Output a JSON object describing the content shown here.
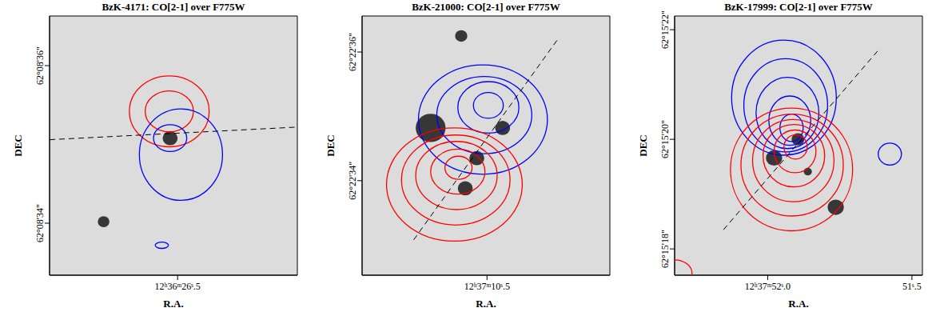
{
  "chart_data": [
    {
      "type": "contour",
      "title": "BzK-4171: CO[2-1] over F775W",
      "x_label": "R.A.",
      "y_label": "DEC",
      "xlim": [
        0,
        2.98
      ],
      "ylim": [
        33.34,
        36.63
      ],
      "xticks": [
        {
          "value": 1.54,
          "label": "12ʰ36ᵐ26ˢ.5"
        }
      ],
      "yticks": [
        {
          "value": 34,
          "label": "62°08'34\""
        },
        {
          "value": 36,
          "label": "62°08'36\""
        }
      ],
      "contours": [
        {
          "color": "#ff0000",
          "line_style": "solid",
          "ellipses": [
            {
              "x": 1.44,
              "y": 35.42,
              "rx": 0.48,
              "ry": 0.45
            },
            {
              "x": 1.44,
              "y": 35.42,
              "rx": 0.29,
              "ry": 0.26
            }
          ]
        },
        {
          "color": "#0000ff",
          "line_style": "solid",
          "ellipses": [
            {
              "x": 1.58,
              "y": 34.87,
              "rx": 0.5,
              "ry": 0.58
            },
            {
              "x": 1.45,
              "y": 35.08,
              "rx": 0.2,
              "ry": 0.17
            },
            {
              "x": 1.35,
              "y": 33.72,
              "rx": 0.08,
              "ry": 0.04
            }
          ]
        }
      ],
      "line": {
        "line_style": "dashed",
        "color": "#000000",
        "x": [
          0,
          2.98
        ],
        "y": [
          35.06,
          35.22
        ]
      },
      "sources": [
        {
          "x": 1.45,
          "y": 35.08,
          "r": 0.09
        },
        {
          "x": 0.65,
          "y": 34.02,
          "r": 0.07
        }
      ]
    },
    {
      "type": "contour",
      "title": "BzK-21000: CO[2-1] over F775W",
      "x_label": "R.A.",
      "y_label": "DEC",
      "xlim": [
        0,
        3.65
      ],
      "ylim": [
        32.53,
        36.56
      ],
      "xticks": [
        {
          "value": 1.84,
          "label": "12ʰ37ᵐ10ˢ.5"
        }
      ],
      "yticks": [
        {
          "value": 34,
          "label": "62°22'34\""
        },
        {
          "value": 36,
          "label": "62°22'36\""
        }
      ],
      "contours": [
        {
          "color": "#0000ff",
          "line_style": "solid",
          "ellipses": [
            {
              "x": 1.78,
              "y": 34.95,
              "rx": 0.95,
              "ry": 0.85
            },
            {
              "x": 1.8,
              "y": 35.02,
              "rx": 0.7,
              "ry": 0.6
            },
            {
              "x": 1.86,
              "y": 35.14,
              "rx": 0.45,
              "ry": 0.4
            },
            {
              "x": 1.86,
              "y": 35.17,
              "rx": 0.22,
              "ry": 0.2
            }
          ]
        },
        {
          "color": "#ff0000",
          "line_style": "solid",
          "ellipses": [
            {
              "x": 1.36,
              "y": 33.94,
              "rx": 1.0,
              "ry": 0.88
            },
            {
              "x": 1.38,
              "y": 34.01,
              "rx": 0.8,
              "ry": 0.7
            },
            {
              "x": 1.39,
              "y": 34.08,
              "rx": 0.6,
              "ry": 0.53
            },
            {
              "x": 1.41,
              "y": 34.14,
              "rx": 0.4,
              "ry": 0.35
            },
            {
              "x": 1.42,
              "y": 34.2,
              "rx": 0.2,
              "ry": 0.18
            }
          ]
        }
      ],
      "line": {
        "line_style": "dashed",
        "color": "#000000",
        "x": [
          0.76,
          2.89
        ],
        "y": [
          33.08,
          36.21
        ]
      },
      "sources": [
        {
          "x": 1.01,
          "y": 34.82,
          "r": 0.22
        },
        {
          "x": 2.07,
          "y": 34.82,
          "r": 0.11
        },
        {
          "x": 1.69,
          "y": 34.35,
          "r": 0.11
        },
        {
          "x": 1.52,
          "y": 33.88,
          "r": 0.11
        },
        {
          "x": 1.46,
          "y": 36.25,
          "r": 0.09
        }
      ]
    },
    {
      "type": "contour",
      "title": "BzK-17999: CO[2-1] over F775W",
      "x_label": "R.A.",
      "y_label": "DEC",
      "xlim": [
        0,
        4.26
      ],
      "ylim": [
        17.52,
        22.25
      ],
      "xticks": [
        {
          "value": 1.6,
          "label": "12ʰ37ᵐ52ˢ.0"
        },
        {
          "value": 4.08,
          "label": "51ˢ.5"
        }
      ],
      "yticks": [
        {
          "value": 18,
          "label": "62°15'18\""
        },
        {
          "value": 20,
          "label": "62°15'20\""
        },
        {
          "value": 22,
          "label": "62°15'22\""
        }
      ],
      "contours": [
        {
          "color": "#0000ff",
          "line_style": "solid",
          "ellipses": [
            {
              "x": 1.88,
              "y": 20.76,
              "rx": 0.9,
              "ry": 1.05
            },
            {
              "x": 1.91,
              "y": 20.62,
              "rx": 0.72,
              "ry": 0.85
            },
            {
              "x": 1.94,
              "y": 20.48,
              "rx": 0.54,
              "ry": 0.65
            },
            {
              "x": 1.98,
              "y": 20.34,
              "rx": 0.36,
              "ry": 0.45
            },
            {
              "x": 2.01,
              "y": 20.21,
              "rx": 0.2,
              "ry": 0.25
            },
            {
              "x": 3.7,
              "y": 19.73,
              "rx": 0.2,
              "ry": 0.2
            }
          ]
        },
        {
          "color": "#ff0000",
          "line_style": "solid",
          "ellipses": [
            {
              "x": 2.01,
              "y": 19.45,
              "rx": 1.05,
              "ry": 1.12
            },
            {
              "x": 2.02,
              "y": 19.53,
              "rx": 0.88,
              "ry": 0.93
            },
            {
              "x": 2.04,
              "y": 19.61,
              "rx": 0.7,
              "ry": 0.75
            },
            {
              "x": 2.05,
              "y": 19.7,
              "rx": 0.53,
              "ry": 0.57
            },
            {
              "x": 2.07,
              "y": 19.78,
              "rx": 0.36,
              "ry": 0.39
            },
            {
              "x": 2.08,
              "y": 19.86,
              "rx": 0.2,
              "ry": 0.22
            },
            {
              "x": 0.0,
              "y": 17.55,
              "rx": 0.3,
              "ry": 0.25
            }
          ]
        }
      ],
      "line": {
        "line_style": "dashed",
        "color": "#000000",
        "x": [
          0.84,
          3.53
        ],
        "y": [
          18.35,
          21.66
        ]
      },
      "sources": [
        {
          "x": 1.71,
          "y": 19.66,
          "r": 0.14
        },
        {
          "x": 2.12,
          "y": 20.0,
          "r": 0.11
        },
        {
          "x": 2.77,
          "y": 18.76,
          "r": 0.14
        },
        {
          "x": 2.29,
          "y": 19.41,
          "r": 0.07
        }
      ]
    }
  ]
}
